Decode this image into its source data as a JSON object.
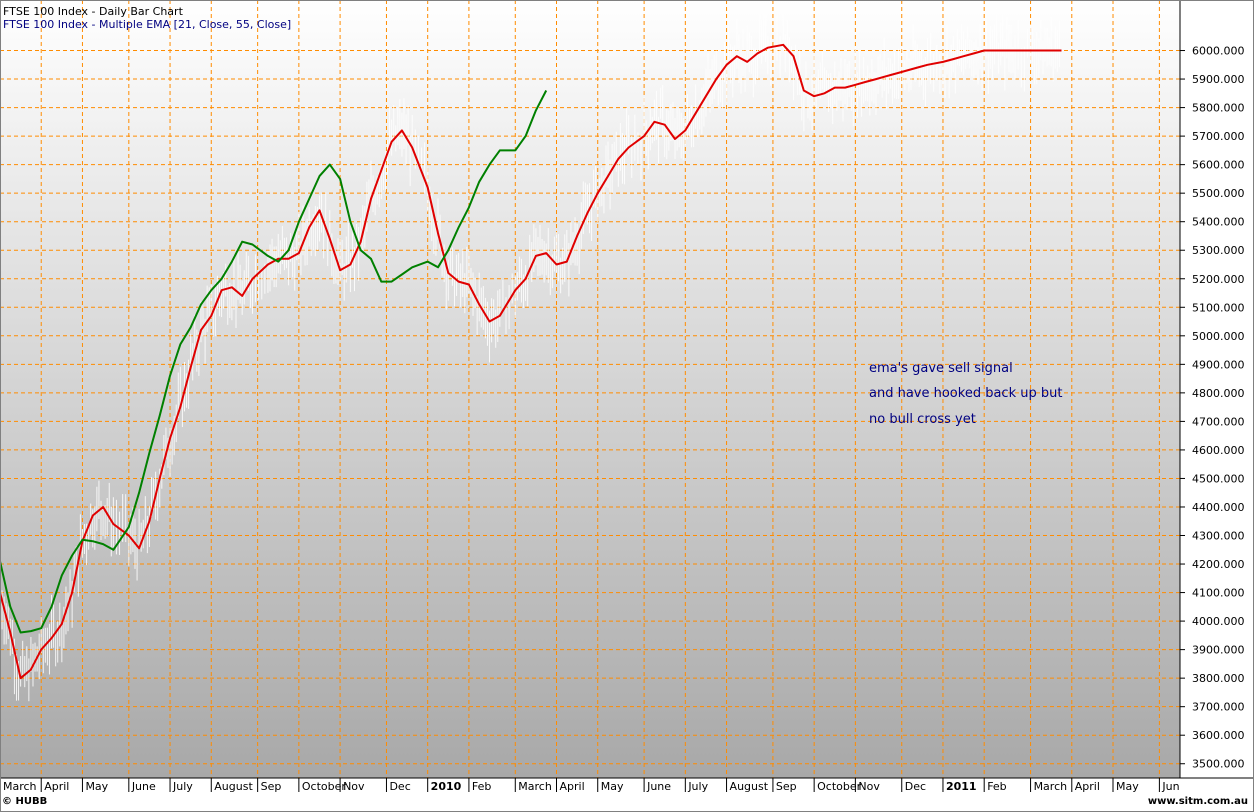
{
  "header": {
    "line1": "FTSE 100 Index - Daily Bar Chart",
    "line2": "FTSE 100 Index - Multiple EMA [21, Close, 55, Close]"
  },
  "footer": {
    "left": "© HUBB",
    "right": "www.sitm.com.au"
  },
  "colors": {
    "background_top": "#ffffff",
    "background_bottom": "#a9a9a9",
    "grid": "#ff8c00",
    "price_bars": "#ffffff",
    "ema_fast": "#e00000",
    "ema_slow": "#008000",
    "annotation": "#000080"
  },
  "chart_data": {
    "type": "line",
    "title": "FTSE 100 Index - Daily Bar Chart",
    "subtitle": "FTSE 100 Index - Multiple EMA [21, Close, 55, Close]",
    "x_range": [
      2009.17,
      2011.46
    ],
    "ylim": [
      3450,
      6100
    ],
    "grid": true,
    "y_ticks": [
      3500,
      3600,
      3700,
      3800,
      3900,
      4000,
      4100,
      4200,
      4300,
      4400,
      4500,
      4600,
      4700,
      4800,
      4900,
      5000,
      5100,
      5200,
      5300,
      5400,
      5500,
      5600,
      5700,
      5800,
      5900,
      6000
    ],
    "y_tick_labels": [
      "3500.000",
      "3600.000",
      "3700.000",
      "3800.000",
      "3900.000",
      "4000.000",
      "4100.000",
      "4200.000",
      "4300.000",
      "4400.000",
      "4500.000",
      "4600.000",
      "4700.000",
      "4800.000",
      "4900.000",
      "5000.000",
      "5100.000",
      "5200.000",
      "5300.000",
      "5400.000",
      "5500.000",
      "5600.000",
      "5700.000",
      "5800.000",
      "5900.000",
      "6000.000"
    ],
    "x_ticks": [
      {
        "label": "March",
        "x": 2009.17,
        "bold": false
      },
      {
        "label": "April",
        "x": 2009.25,
        "bold": false
      },
      {
        "label": "May",
        "x": 2009.33,
        "bold": false
      },
      {
        "label": "June",
        "x": 2009.42,
        "bold": false
      },
      {
        "label": "July",
        "x": 2009.5,
        "bold": false
      },
      {
        "label": "August",
        "x": 2009.58,
        "bold": false
      },
      {
        "label": "Sep",
        "x": 2009.67,
        "bold": false
      },
      {
        "label": "October",
        "x": 2009.75,
        "bold": false
      },
      {
        "label": "Nov",
        "x": 2009.83,
        "bold": false
      },
      {
        "label": "Dec",
        "x": 2009.92,
        "bold": false
      },
      {
        "label": "2010",
        "x": 2010.0,
        "bold": true
      },
      {
        "label": "Feb",
        "x": 2010.08,
        "bold": false
      },
      {
        "label": "March",
        "x": 2010.17,
        "bold": false
      },
      {
        "label": "April",
        "x": 2010.25,
        "bold": false
      },
      {
        "label": "May",
        "x": 2010.33,
        "bold": false
      },
      {
        "label": "June",
        "x": 2010.42,
        "bold": false
      },
      {
        "label": "July",
        "x": 2010.5,
        "bold": false
      },
      {
        "label": "August",
        "x": 2010.58,
        "bold": false
      },
      {
        "label": "Sep",
        "x": 2010.67,
        "bold": false
      },
      {
        "label": "October",
        "x": 2010.75,
        "bold": false
      },
      {
        "label": "Nov",
        "x": 2010.83,
        "bold": false
      },
      {
        "label": "Dec",
        "x": 2010.92,
        "bold": false
      },
      {
        "label": "2011",
        "x": 2011.0,
        "bold": true
      },
      {
        "label": "Feb",
        "x": 2011.08,
        "bold": false
      },
      {
        "label": "March",
        "x": 2011.17,
        "bold": false
      },
      {
        "label": "April",
        "x": 2011.25,
        "bold": false
      },
      {
        "label": "May",
        "x": 2011.33,
        "bold": false
      },
      {
        "label": "Jun",
        "x": 2011.42,
        "bold": false
      }
    ],
    "series": [
      {
        "name": "EMA 21",
        "color": "#e00000",
        "x": [
          2009.17,
          2009.19,
          2009.21,
          2009.23,
          2009.25,
          2009.27,
          2009.29,
          2009.31,
          2009.33,
          2009.35,
          2009.37,
          2009.39,
          2009.42,
          2009.44,
          2009.46,
          2009.48,
          2009.5,
          2009.52,
          2009.54,
          2009.56,
          2009.58,
          2009.6,
          2009.62,
          2009.64,
          2009.66,
          2009.69,
          2009.71,
          2009.73,
          2009.75,
          2009.77,
          2009.79,
          2009.81,
          2009.83,
          2009.85,
          2009.87,
          2009.89,
          2009.91,
          2009.93,
          2009.95,
          2009.97,
          2010.0,
          2010.02,
          2010.04,
          2010.06,
          2010.08,
          2010.1,
          2010.12,
          2010.14,
          2010.17,
          2010.19,
          2010.21,
          2010.23,
          2010.25,
          2010.27,
          2010.29,
          2010.31,
          2010.33,
          2010.35,
          2010.37,
          2010.39,
          2010.42,
          2010.44,
          2010.46,
          2010.48,
          2010.5,
          2010.52,
          2010.54,
          2010.56,
          2010.58,
          2010.6,
          2010.62,
          2010.64,
          2010.66,
          2010.69,
          2010.71,
          2010.73,
          2010.75,
          2010.77,
          2010.79,
          2010.81,
          2010.83,
          2010.85,
          2010.87,
          2010.89,
          2010.91,
          2010.93,
          2010.95,
          2010.97,
          2011.0,
          2011.02,
          2011.04,
          2011.06,
          2011.08,
          2011.1,
          2011.12,
          2011.14,
          2011.17,
          2011.19,
          2011.21,
          2011.23
        ],
        "values": [
          4100,
          3960,
          3800,
          3830,
          3900,
          3940,
          3990,
          4100,
          4280,
          4370,
          4400,
          4340,
          4300,
          4255,
          4350,
          4500,
          4640,
          4750,
          4890,
          5020,
          5070,
          5160,
          5170,
          5140,
          5200,
          5250,
          5270,
          5270,
          5290,
          5380,
          5440,
          5340,
          5230,
          5250,
          5330,
          5480,
          5580,
          5680,
          5720,
          5660,
          5520,
          5360,
          5220,
          5190,
          5180,
          5110,
          5050,
          5070,
          5160,
          5200,
          5280,
          5290,
          5250,
          5260,
          5350,
          5430,
          5500,
          5560,
          5620,
          5660,
          5700,
          5750,
          5740,
          5690,
          5720,
          5780,
          5840,
          5900,
          5950,
          5980,
          5960,
          5990,
          6010,
          6020,
          5980,
          5860,
          5840,
          5850,
          5870,
          5870,
          5880,
          5890,
          5900,
          5910,
          5920,
          5930,
          5940,
          5950,
          5960,
          5970,
          5980,
          5990,
          6000,
          6000,
          6000,
          6000,
          6000,
          6000,
          6000,
          6000
        ],
        "values_note_removed": true
      },
      {
        "name": "EMA 55",
        "color": "#008000",
        "x": [
          2009.17,
          2009.19,
          2009.21,
          2009.23,
          2009.25,
          2009.27,
          2009.29,
          2009.31,
          2009.33,
          2009.35,
          2009.37,
          2009.39,
          2009.42,
          2009.44,
          2009.46,
          2009.48,
          2009.5,
          2009.52,
          2009.54,
          2009.56,
          2009.58,
          2009.6,
          2009.62,
          2009.64,
          2009.66,
          2009.69,
          2009.71,
          2009.73,
          2009.75,
          2009.77,
          2009.79,
          2009.81,
          2009.83,
          2009.85,
          2009.87,
          2009.89,
          2009.91,
          2009.93,
          2009.95,
          2009.97,
          2010.0,
          2010.02,
          2010.04,
          2010.06,
          2010.08,
          2010.1,
          2010.12,
          2010.14,
          2010.17,
          2010.19,
          2010.21,
          2010.23
        ],
        "values": [
          4210,
          4050,
          3960,
          3965,
          3975,
          4050,
          4160,
          4230,
          4285,
          4280,
          4270,
          4250,
          4330,
          4450,
          4590,
          4720,
          4860,
          4970,
          5030,
          5110,
          5160,
          5200,
          5260,
          5330,
          5320,
          5280,
          5260,
          5300,
          5400,
          5480,
          5560,
          5600,
          5550,
          5400,
          5300,
          5270,
          5190,
          5190,
          5215,
          5240,
          5260,
          5240,
          5300,
          5380,
          5450,
          5540,
          5600,
          5650,
          5650,
          5700,
          5790,
          5860
        ]
      }
    ],
    "annotations": [
      "ema's gave sell signal",
      "and have hooked back up but",
      " no bull cross yet"
    ]
  }
}
